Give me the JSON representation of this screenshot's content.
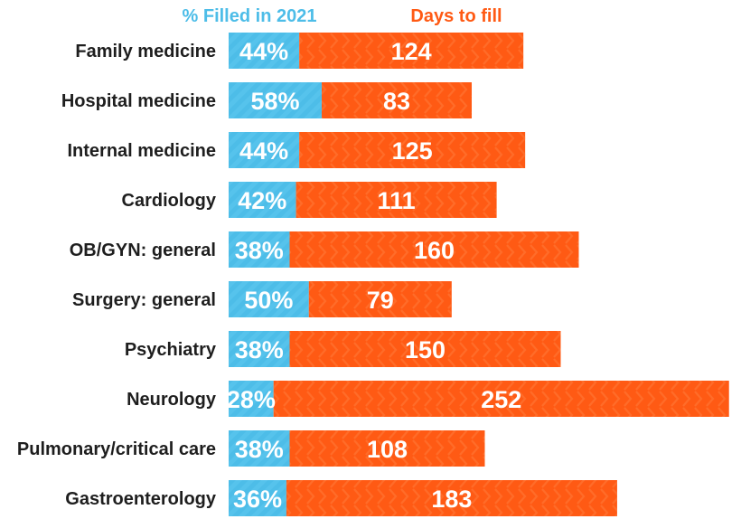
{
  "chart_data": {
    "type": "bar",
    "stacked": true,
    "orientation": "horizontal",
    "legend_placement": "top",
    "categories": [
      "Family medicine",
      "Hospital medicine",
      "Internal medicine",
      "Cardiology",
      "OB/GYN: general",
      "Surgery: general",
      "Psychiatry",
      "Neurology",
      "Pulmonary/critical care",
      "Gastroenterology"
    ],
    "series": [
      {
        "name": "% Filled in 2021",
        "color": "#4dbde8",
        "values": [
          44,
          58,
          44,
          42,
          38,
          50,
          38,
          28,
          38,
          36
        ],
        "labels": [
          "44%",
          "58%",
          "44%",
          "42%",
          "38%",
          "50%",
          "38%",
          "28%",
          "38%",
          "36%"
        ]
      },
      {
        "name": "Days to fill",
        "color": "#ff5a14",
        "values": [
          124,
          83,
          125,
          111,
          160,
          79,
          150,
          252,
          108,
          183
        ],
        "labels": [
          "124",
          "83",
          "125",
          "111",
          "160",
          "79",
          "150",
          "252",
          "108",
          "183"
        ]
      }
    ],
    "grid": false
  }
}
